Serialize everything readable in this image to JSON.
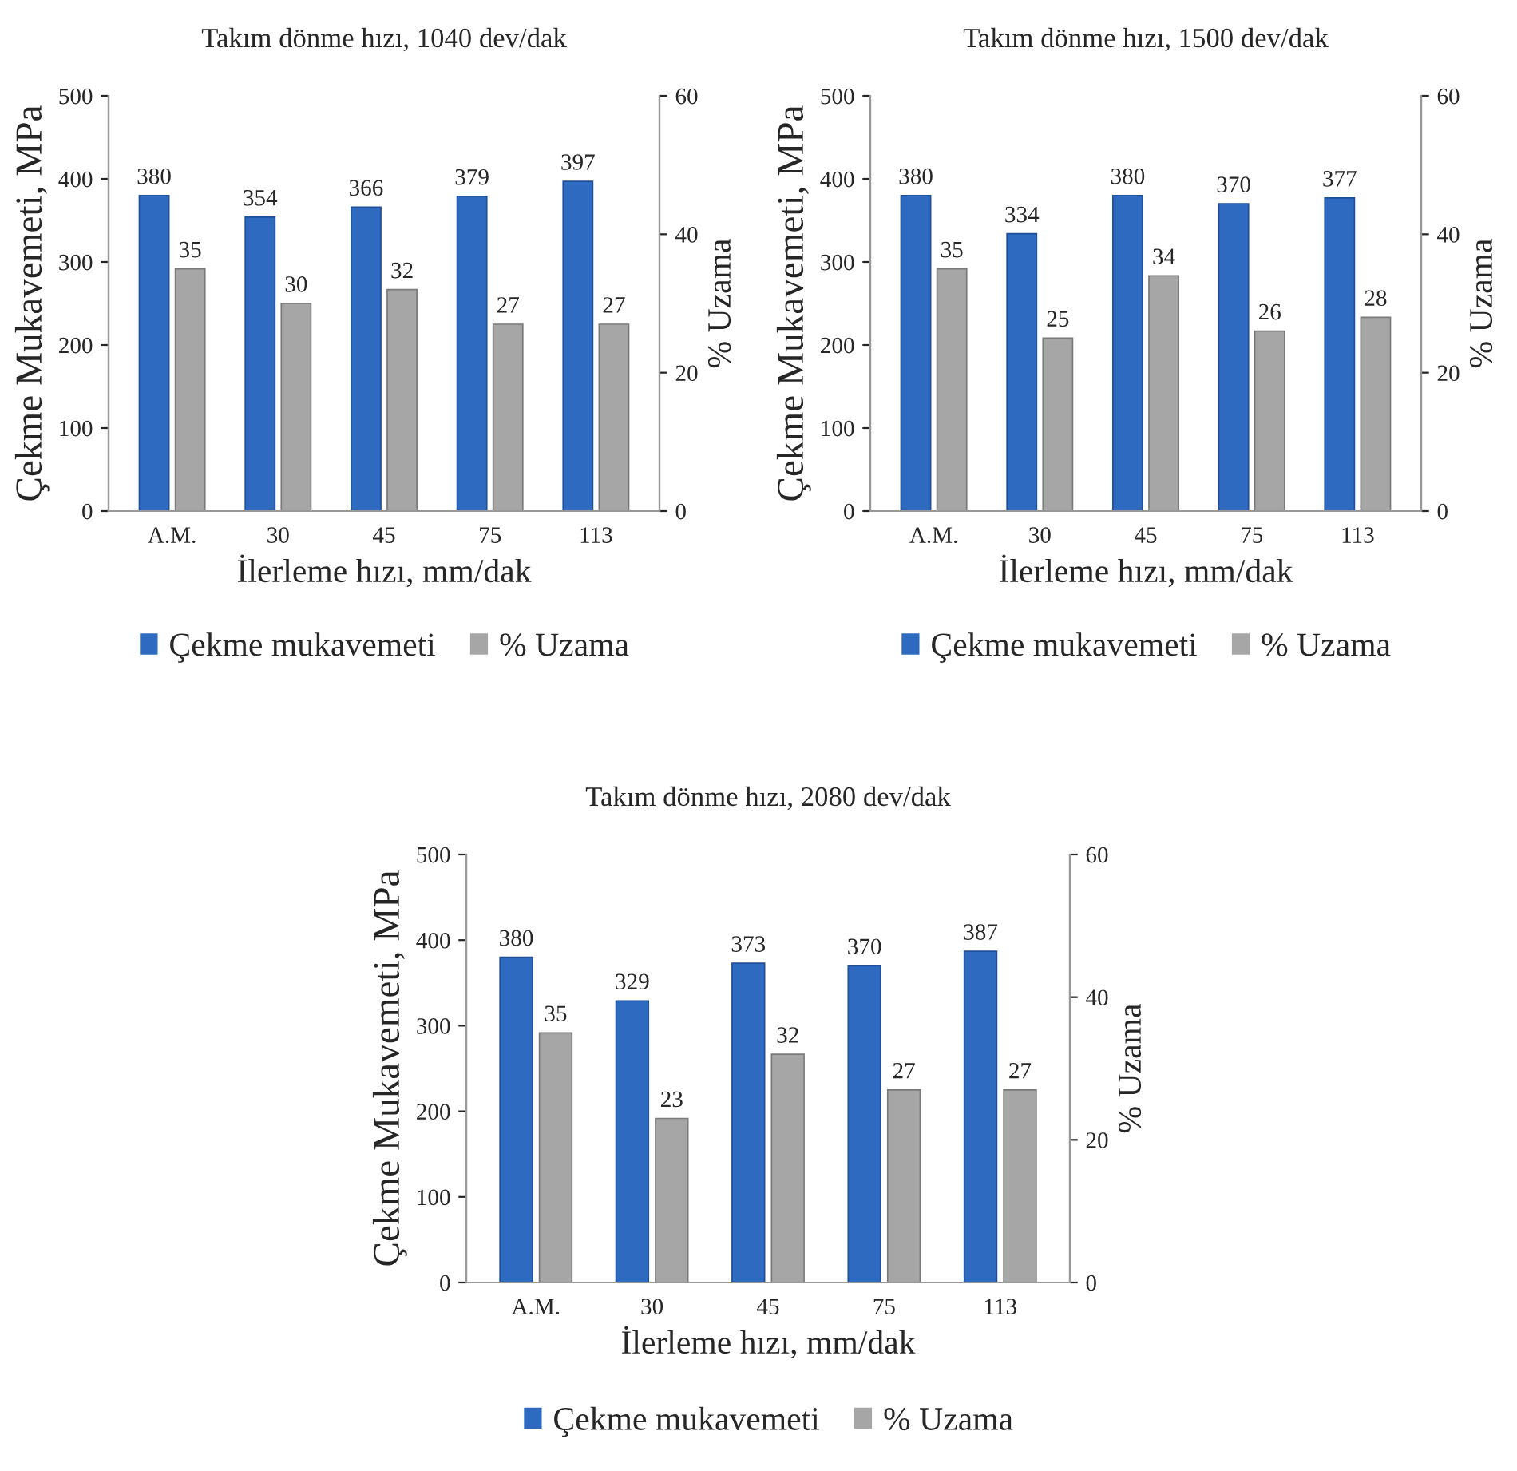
{
  "chart_data": [
    {
      "type": "bar",
      "title": "Takım dönme hızı, 1040 dev/dak",
      "xlabel": "İlerleme hızı, mm/dak",
      "ylabel": "Çekme Mukavemeti, MPa",
      "y2label": "% Uzama",
      "categories": [
        "A.M.",
        "30",
        "45",
        "75",
        "113"
      ],
      "ylim": [
        0,
        500
      ],
      "yticks": [
        0,
        100,
        200,
        300,
        400,
        500
      ],
      "y2lim": [
        0,
        60
      ],
      "y2ticks": [
        0,
        20,
        40,
        60
      ],
      "data_labels": true,
      "legend": "bottom",
      "grid": false,
      "series": [
        {
          "name": "Çekme mukavemeti",
          "color": "#2e6bc0",
          "values": [
            380,
            354,
            366,
            379,
            397
          ]
        },
        {
          "name": "% Uzama",
          "color": "#a6a6a6",
          "axis": "y2",
          "values": [
            35,
            30,
            32,
            27,
            27
          ]
        }
      ]
    },
    {
      "type": "bar",
      "title": "Takım dönme hızı, 1500 dev/dak",
      "xlabel": "İlerleme hızı, mm/dak",
      "ylabel": "Çekme Mukavemeti, MPa",
      "y2label": "% Uzama",
      "categories": [
        "A.M.",
        "30",
        "45",
        "75",
        "113"
      ],
      "ylim": [
        0,
        500
      ],
      "yticks": [
        0,
        100,
        200,
        300,
        400,
        500
      ],
      "y2lim": [
        0,
        60
      ],
      "y2ticks": [
        0,
        20,
        40,
        60
      ],
      "data_labels": true,
      "legend": "bottom",
      "grid": false,
      "series": [
        {
          "name": "Çekme mukavemeti",
          "color": "#2e6bc0",
          "values": [
            380,
            334,
            380,
            370,
            377
          ]
        },
        {
          "name": "% Uzama",
          "color": "#a6a6a6",
          "axis": "y2",
          "values": [
            35,
            25,
            34,
            26,
            28
          ]
        }
      ]
    },
    {
      "type": "bar",
      "title": "Takım dönme hızı, 2080 dev/dak",
      "xlabel": "İlerleme hızı, mm/dak",
      "ylabel": "Çekme Mukavemeti, MPa",
      "y2label": "% Uzama",
      "categories": [
        "A.M.",
        "30",
        "45",
        "75",
        "113"
      ],
      "ylim": [
        0,
        500
      ],
      "yticks": [
        0,
        100,
        200,
        300,
        400,
        500
      ],
      "y2lim": [
        0,
        60
      ],
      "y2ticks": [
        0,
        20,
        40,
        60
      ],
      "data_labels": true,
      "legend": "bottom",
      "grid": false,
      "series": [
        {
          "name": "Çekme mukavemeti",
          "color": "#2e6bc0",
          "values": [
            380,
            329,
            373,
            370,
            387
          ]
        },
        {
          "name": "% Uzama",
          "color": "#a6a6a6",
          "axis": "y2",
          "values": [
            35,
            23,
            32,
            27,
            27
          ]
        }
      ]
    }
  ]
}
